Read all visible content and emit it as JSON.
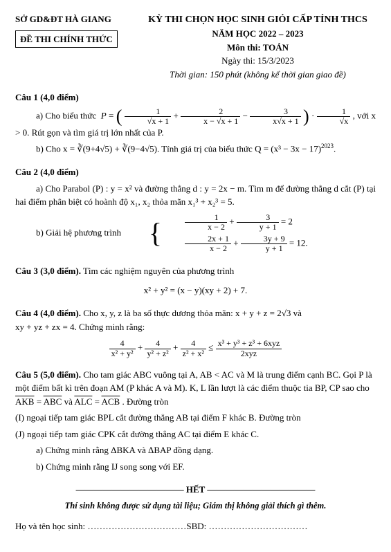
{
  "header": {
    "org": "SỞ GD&ĐT HÀ GIANG",
    "dethi": "ĐỀ THI CHÍNH THỨC",
    "title_main": "KỲ THI CHỌN HỌC SINH GIỎI CẤP TỈNH THCS",
    "year": "NĂM HỌC 2022 – 2023",
    "subject": "Môn thi: TOÁN",
    "date": "Ngày thi: 15/3/2023",
    "time": "Thời gian: 150 phút (không kể thời gian giao đề)"
  },
  "q1": {
    "title": "Câu 1 (4,0 điểm)",
    "a_pre": "a) Cho biểu thức",
    "a_post": ",  với  x > 0. Rút gọn và tìm giá trị lớn nhất của  P.",
    "b_pre": "b) Cho  x = ∛(9+4√5) + ∛(9−4√5). Tính giá trị của biểu thức  Q = (x³ − 3x − 17)",
    "b_exp": "2023",
    "b_end": "."
  },
  "q2": {
    "title": "Câu 2 (4,0 điểm)",
    "a": "a) Cho Parabol  (P) : y = x²  và đường thẳng  d : y = 2x − m. Tìm  m  để đường thẳng  d  cắt  (P)  tại hai điểm phân biệt có hoành độ  x₁, x₂  thỏa mãn  x₁³ + x₂³ = 5.",
    "b_pre": "b) Giải hệ phương trình"
  },
  "q3": {
    "title": "Câu 3 (3,0 điểm).",
    "text": "Tìm các nghiệm nguyên của phương trình",
    "eq": "x² + y² = (x − y)(xy + 2) + 7."
  },
  "q4": {
    "title": "Câu 4 (4,0 điểm).",
    "text_a": "Cho  x, y, z  là ba số thực dương thỏa mãn:  x + y + z = 2√3  và",
    "text_b": "xy + yz + zx = 4. Chứng minh rằng:"
  },
  "q5": {
    "title": "Câu 5 (5,0 điểm).",
    "intro": "Cho tam giác  ABC  vuông tại  A,  AB < AC  và  M  là trung điểm cạnh  BC. Gọi  P  là một điểm bất kì trên đoạn  AM  (P  khác  A  và  M).  K, L  lần lượt là các điểm thuộc tia  BP, CP  sao cho  ",
    "arc1": "AKB",
    "mid1": " = ",
    "arc2": "ABC",
    "mid2": "  và  ",
    "arc3": "ALC",
    "mid3": " = ",
    "arc4": "ACB",
    "intro_end": ".  Đường tròn",
    "line_I": "(I) ngoại tiếp tam giác  BPL  cắt đường thẳng  AB  tại điểm  F  khác  B. Đường tròn",
    "line_J": "(J) ngoại tiếp tam giác  CPK  cắt đường thẳng  AC  tại điểm  E  khác  C.",
    "part_a": "a) Chứng minh rằng  ΔBKA  và  ΔBAP  đồng dạng.",
    "part_b": "b) Chứng minh rằng  IJ  song song với  EF."
  },
  "footer": {
    "het": "———————————— HẾT ————————————",
    "note": "Thí sinh không được sử dụng tài liệu; Giám thị không giải thích gì thêm.",
    "sig": "Họ và tên học sinh: ……………………………SBD: ……………………………"
  }
}
